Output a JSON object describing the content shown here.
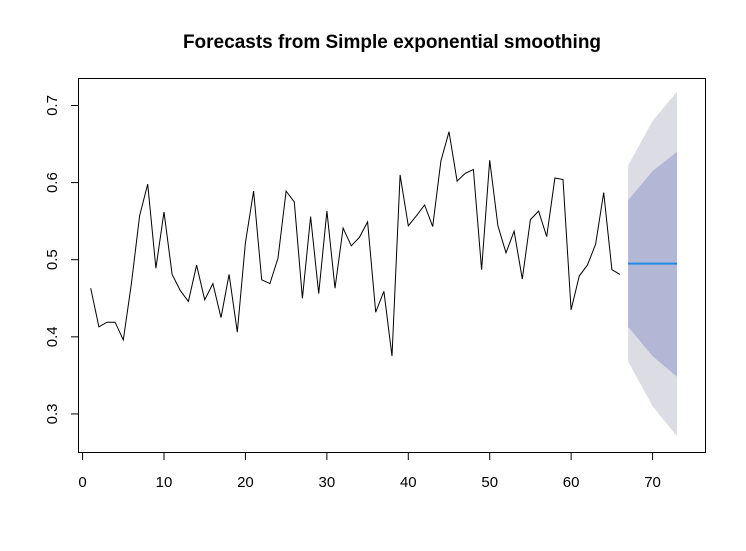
{
  "chart_data": {
    "type": "line",
    "title": "Forecasts from Simple exponential smoothing",
    "xlabel": "",
    "ylabel": "",
    "xlim": [
      -0.5,
      76.5
    ],
    "ylim": [
      0.25,
      0.735
    ],
    "x_ticks": [
      0,
      10,
      20,
      30,
      40,
      50,
      60,
      70
    ],
    "y_ticks": [
      0.3,
      0.4,
      0.5,
      0.6,
      0.7
    ],
    "x_tick_labels": [
      "0",
      "10",
      "20",
      "30",
      "40",
      "50",
      "60",
      "70"
    ],
    "y_tick_labels": [
      "0.3",
      "0.4",
      "0.5",
      "0.6",
      "0.7"
    ],
    "grid": false,
    "series": [
      {
        "role": "observed",
        "color": "#000000",
        "x": [
          1,
          2,
          3,
          4,
          5,
          6,
          7,
          8,
          9,
          10,
          11,
          12,
          13,
          14,
          15,
          16,
          17,
          18,
          19,
          20,
          21,
          22,
          23,
          24,
          25,
          26,
          27,
          28,
          29,
          30,
          31,
          32,
          33,
          34,
          35,
          36,
          37,
          38,
          39,
          40,
          41,
          42,
          43,
          44,
          45,
          46,
          47,
          48,
          49,
          50,
          51,
          52,
          53,
          54,
          55,
          56,
          57,
          58,
          59,
          60,
          61,
          62,
          63,
          64,
          65,
          66
        ],
        "y": [
          0.463,
          0.413,
          0.419,
          0.419,
          0.396,
          0.469,
          0.557,
          0.598,
          0.489,
          0.562,
          0.481,
          0.46,
          0.446,
          0.493,
          0.448,
          0.469,
          0.425,
          0.481,
          0.406,
          0.522,
          0.589,
          0.474,
          0.469,
          0.502,
          0.589,
          0.575,
          0.45,
          0.556,
          0.456,
          0.563,
          0.463,
          0.541,
          0.518,
          0.529,
          0.549,
          0.432,
          0.459,
          0.375,
          0.61,
          0.544,
          0.557,
          0.571,
          0.543,
          0.628,
          0.666,
          0.602,
          0.612,
          0.617,
          0.487,
          0.629,
          0.544,
          0.509,
          0.537,
          0.475,
          0.552,
          0.563,
          0.53,
          0.606,
          0.604,
          0.435,
          0.479,
          0.493,
          0.52,
          0.587,
          0.487,
          0.481
        ]
      },
      {
        "role": "forecast",
        "color": "#1e88e5",
        "x": [
          67,
          73
        ],
        "y": [
          0.495,
          0.495
        ]
      }
    ],
    "intervals": [
      {
        "level": "95%",
        "color": "#dcdce4",
        "x": [
          67,
          70,
          73
        ],
        "upper": [
          0.622,
          0.68,
          0.718
        ],
        "lower": [
          0.368,
          0.31,
          0.271
        ]
      },
      {
        "level": "80%",
        "color": "#b3b7d6",
        "x": [
          67,
          70,
          73
        ],
        "upper": [
          0.577,
          0.615,
          0.64
        ],
        "lower": [
          0.413,
          0.375,
          0.348
        ]
      }
    ]
  }
}
